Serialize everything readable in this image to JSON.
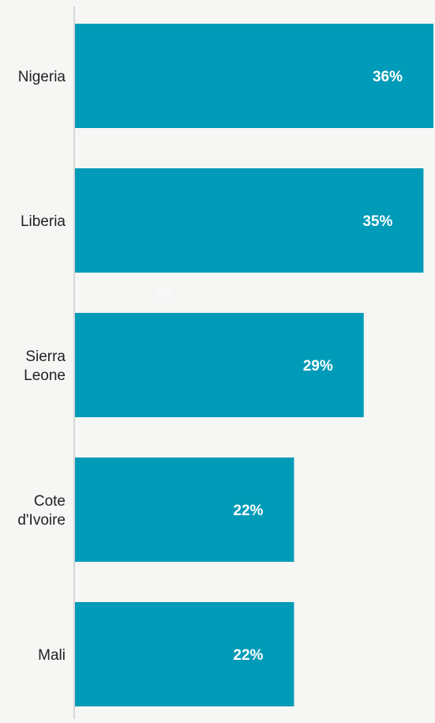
{
  "chart_data": {
    "type": "bar",
    "orientation": "horizontal",
    "categories": [
      "Nigeria",
      "Liberia",
      "Sierra Leone",
      "Cote d'Ivoire",
      "Mali"
    ],
    "category_lines": [
      [
        "Nigeria"
      ],
      [
        "Liberia"
      ],
      [
        "Sierra",
        "Leone"
      ],
      [
        "Cote",
        "d'Ivoire"
      ],
      [
        "Mali"
      ]
    ],
    "values": [
      36,
      35,
      29,
      22,
      22
    ],
    "value_labels": [
      "36%",
      "35%",
      "29%",
      "22%",
      "22%"
    ],
    "extra_labels": [
      "2%"
    ],
    "xlim": [
      0,
      36
    ],
    "grid": false,
    "colors": {
      "bar": "#009bb8",
      "value_label": "#ffffff",
      "category_label": "#222222",
      "axis": "#cccccc",
      "background": "#f6f6f4"
    }
  }
}
